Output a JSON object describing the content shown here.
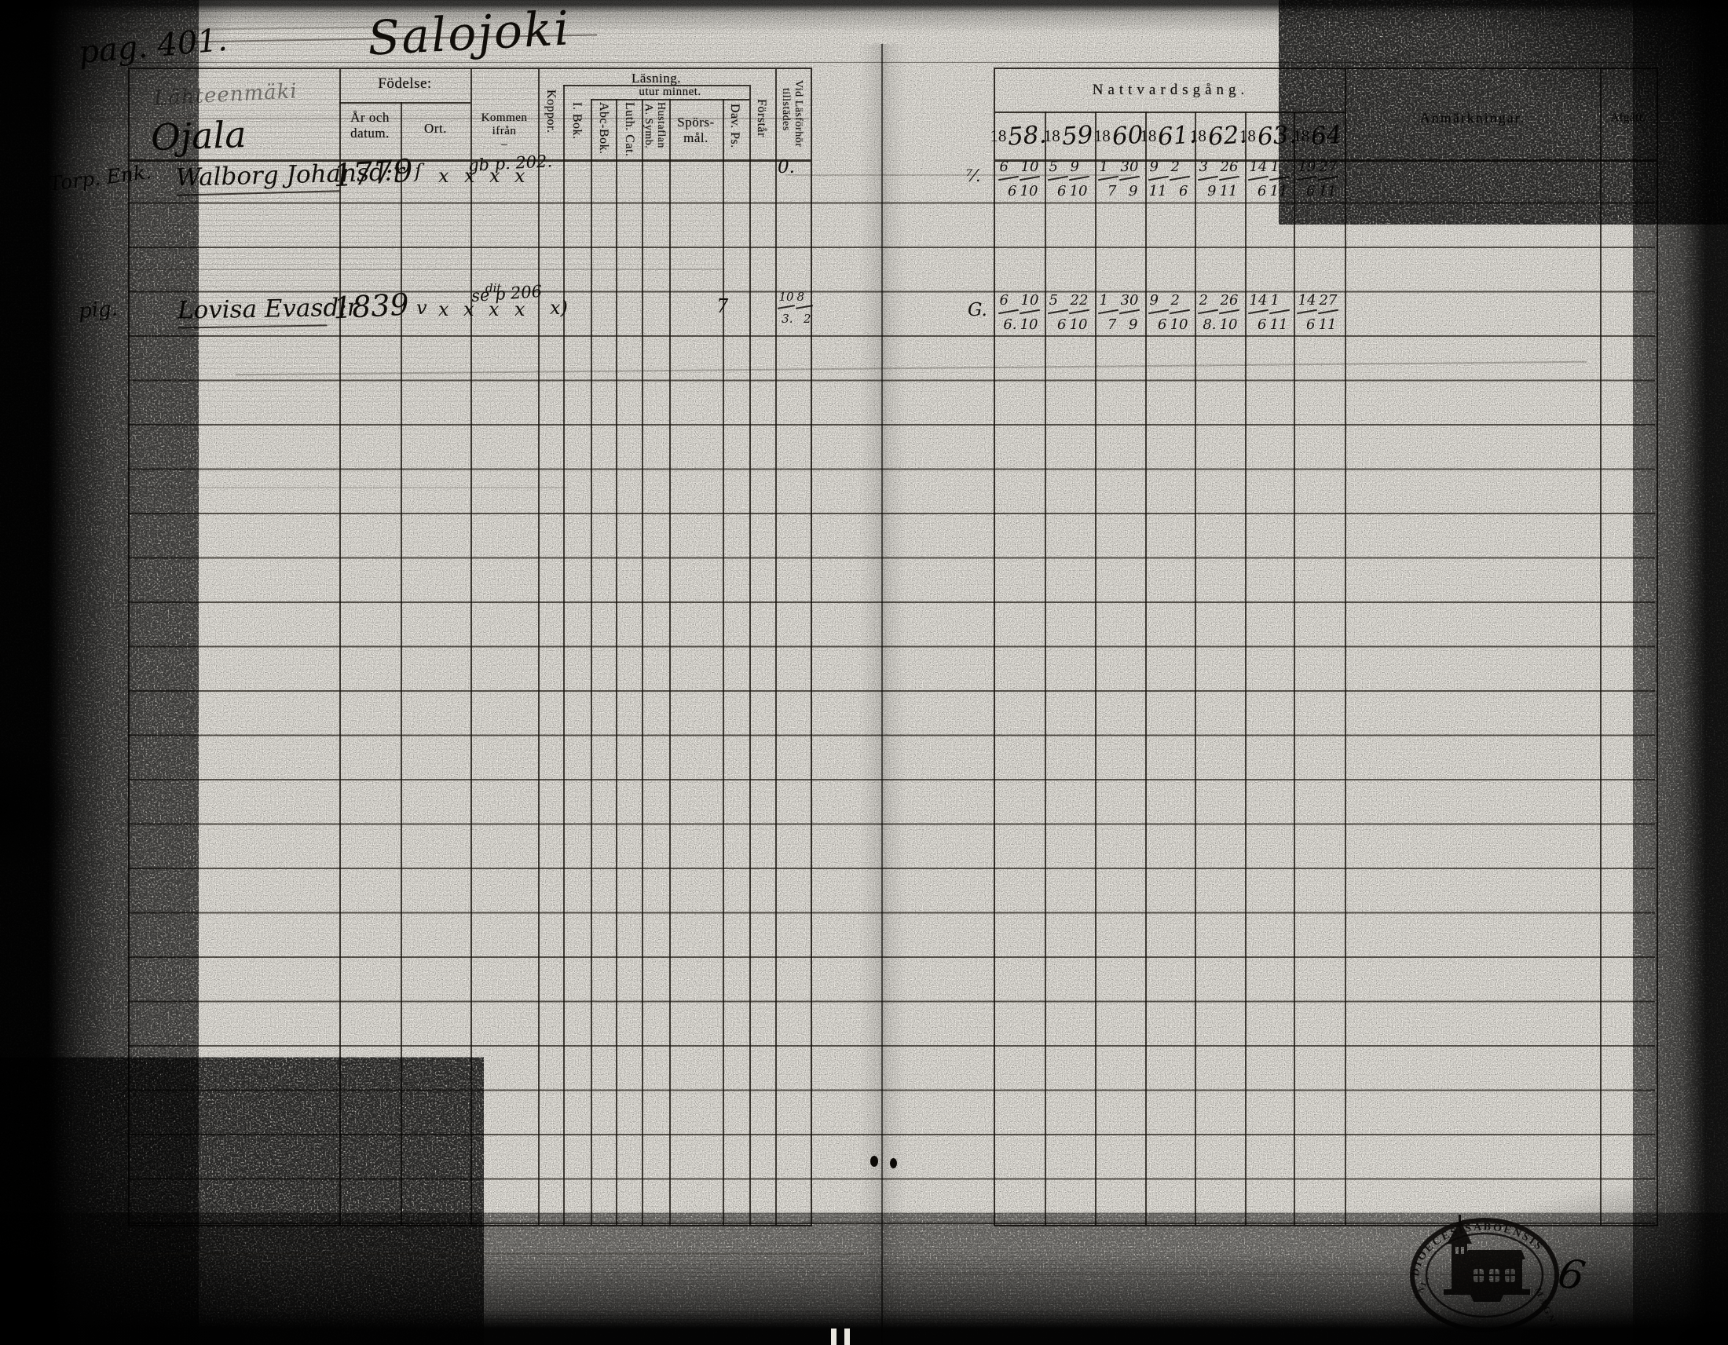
{
  "page": {
    "page_label": "pag. 401.",
    "title": "Salojoki",
    "sub_note": "Lähteenmäki",
    "farm_name": "Ojala",
    "stamp": {
      "top_text": "DIOECESISABOENSIS",
      "bottom_right_text": "MAGNI",
      "bottom_left_text": "FNL.",
      "side_mark": "6"
    }
  },
  "table": {
    "left_headers": {
      "fodelse": "Födelse:",
      "ar_och_datum": "År och datum.",
      "ort": "Ort.",
      "kommen_ifran": "Kommen ifrån\n–",
      "koppor": "Koppor.",
      "lasning": "Läsning.",
      "utur_minnet": "utur minnet.",
      "i_bok": "I. Bok.",
      "abc_bok": "Abc-Bok.",
      "luth_cat": "Luth. Cat.",
      "a_symb": "A. Symb.",
      "hustaflan": "Hustaflan",
      "sporsmal": "Spörs-\nmål.",
      "dav_ps": "Dav. Ps.",
      "forstar": "Förstår",
      "vid_lasforhor_1": "Vid Läsförhör",
      "vid_lasforhor_2": "tillstädes"
    },
    "right_headers": {
      "nattvardsgang": "Nattvardsgång.",
      "years": [
        {
          "printed": "18",
          "hand": "58."
        },
        {
          "printed": "18",
          "hand": "59"
        },
        {
          "printed": "18",
          "hand": "60"
        },
        {
          "printed": "18",
          "hand": "61."
        },
        {
          "printed": "18",
          "hand": "62."
        },
        {
          "printed": "18",
          "hand": "63."
        },
        {
          "printed": "18",
          "hand": "64"
        }
      ],
      "anmarkningar": "Anmärkningar.",
      "afgatt": "Afgått."
    },
    "rows": [
      {
        "margin_note": "Torp. Enk.",
        "name": "Walborg Johansd:r",
        "birth_year": "1779",
        "kommen_note": "gb p. 202.",
        "koppor": "ſ",
        "marks": {
          "i_bok": "x",
          "abc_bok": "x",
          "luth_cat": "x",
          "a_symb": "x"
        },
        "vid_lasforhor": "0.",
        "gutter_mark": "⁷⁄.",
        "communion": [
          "6/6 10/10",
          "5/6 9/10",
          "1/7 30/9",
          "9/11 2/6",
          "3/9 26/11",
          "14/6 1/11",
          "19/6 27/11"
        ]
      },
      {
        "margin_note": "pig.",
        "name": "Lovisa Evasd:r",
        "birth_year": "1839",
        "kommen_note": "se p 206",
        "koppor": "v",
        "marks": {
          "i_bok": "x",
          "abc_bok": "x",
          "luth_cat": "x",
          "luth_cat_note": "dit",
          "a_symb": "x",
          "sporsmal": "x)",
          "dav_ps": "7"
        },
        "vid_lasforhor": "10/3. 8/2",
        "gutter_mark": "G.",
        "communion": [
          "6/6. 10/10",
          "5/6 22/10",
          "1/7 30/9",
          "9/6 2/10",
          "2/8. 26/10",
          "14/6 1/11",
          "14/6 27/11"
        ]
      }
    ]
  }
}
